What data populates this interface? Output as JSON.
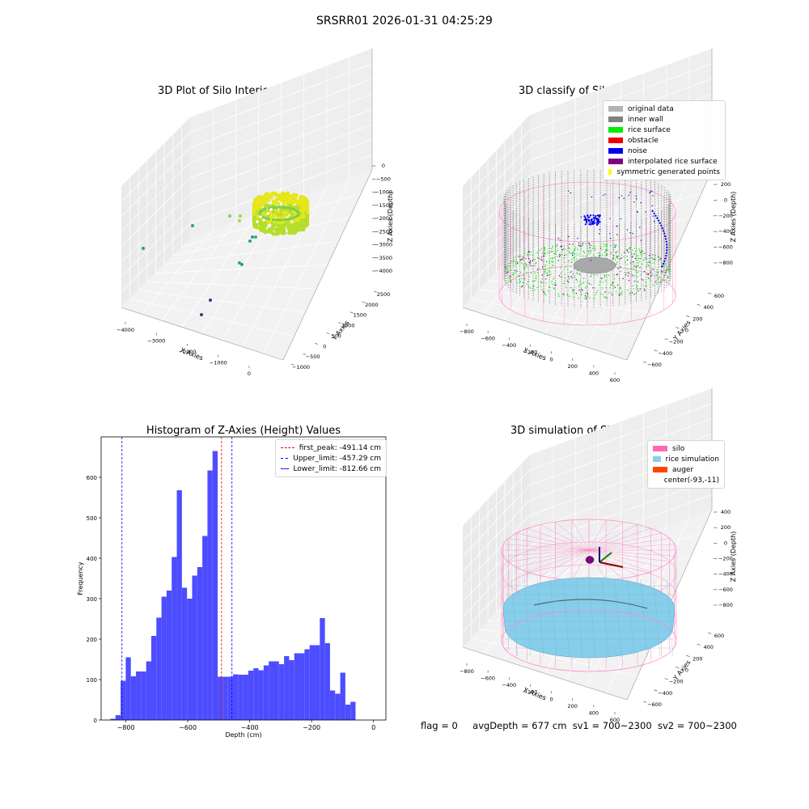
{
  "figure": {
    "suptitle": "SRSRR01 2026-01-31 04:25:29"
  },
  "panels": {
    "raw": {
      "title": "3D Plot of Silo Interior(row data)",
      "xlabel": "X Axies",
      "ylabel": "Y Axies",
      "zlabel": "Z Axies (Depth)",
      "xticks": [
        "−4000",
        "−3000",
        "−2000",
        "−1000",
        "0"
      ],
      "yticks": [
        "−1000",
        "−500",
        "0",
        "500",
        "1000",
        "1500",
        "2000",
        "2500"
      ],
      "zticks": [
        "0",
        "−500",
        "−1000",
        "−1500",
        "−2000",
        "−2500",
        "−3000",
        "−3500",
        "−4000"
      ]
    },
    "classify": {
      "title": "3D classify of Silo Interior",
      "xlabel": "X Axies",
      "ylabel": "Y Axies",
      "zlabel": "Z Axies (Depth)",
      "xticks": [
        "−800",
        "−600",
        "−400",
        "−200",
        "0",
        "200",
        "400",
        "600"
      ],
      "yticks": [
        "−600",
        "−400",
        "−200",
        "0",
        "200",
        "400",
        "600"
      ],
      "zticks": [
        "200",
        "0",
        "−200",
        "−400",
        "−600",
        "−800"
      ],
      "legend": [
        {
          "label": "original data",
          "color": "#b3b3b3"
        },
        {
          "label": "inner wall",
          "color": "#808080"
        },
        {
          "label": "rice surface",
          "color": "#00ee00"
        },
        {
          "label": "obstacle",
          "color": "#ee0000"
        },
        {
          "label": "noise",
          "color": "#0000ee"
        },
        {
          "label": "interpolated rice surface",
          "color": "#800080"
        },
        {
          "label": "symmetric generated points",
          "color": "#ffff00"
        }
      ]
    },
    "simulation": {
      "title": "3D simulation of Silo Interior",
      "xlabel": "X Axies",
      "ylabel": "Y Axies",
      "zlabel": "Z Axies (Depth)",
      "xticks": [
        "−800",
        "−600",
        "−400",
        "−200",
        "0",
        "200",
        "400",
        "600"
      ],
      "yticks": [
        "−600",
        "−400",
        "−200",
        "0",
        "200",
        "400",
        "600"
      ],
      "zticks": [
        "400",
        "200",
        "0",
        "−200",
        "−400",
        "−600",
        "−800"
      ],
      "legend": [
        {
          "label": "silo",
          "color": "#ff69b4"
        },
        {
          "label": "rice simulation",
          "color": "#87ceeb"
        },
        {
          "label": "auger",
          "color": "#ff4500"
        },
        {
          "label": "center(-93,-11)",
          "color": "#ffffff"
        }
      ]
    }
  },
  "chart_data": {
    "type": "bar",
    "title": "Histogram of Z-Axies (Height) Values",
    "xlabel": "Depth (cm)",
    "ylabel": "Frequency",
    "xlim": [
      -880,
      40
    ],
    "ylim": [
      0,
      700
    ],
    "xticks": [
      -800,
      -600,
      -400,
      -200,
      0
    ],
    "yticks": [
      0,
      100,
      200,
      300,
      400,
      500,
      600
    ],
    "bin_width": 16.5,
    "bin_start": -850,
    "values": [
      3,
      12,
      97,
      155,
      108,
      120,
      120,
      145,
      208,
      253,
      305,
      320,
      403,
      568,
      327,
      300,
      357,
      378,
      455,
      617,
      665,
      107,
      107,
      107,
      113,
      112,
      112,
      122,
      128,
      123,
      135,
      145,
      145,
      138,
      158,
      148,
      165,
      165,
      175,
      185,
      185,
      252,
      190,
      73,
      65,
      117,
      38,
      45
    ],
    "bar_color": "#4d4dff",
    "lines": [
      {
        "label": "first_peak: -491.14 cm",
        "value": -491.14,
        "color": "#ff0000"
      },
      {
        "label": "Upper_limit: -457.29 cm",
        "value": -457.29,
        "color": "#0000ff"
      },
      {
        "label": "Lower_limit: -812.66 cm",
        "value": -812.66,
        "color": "#0000ff"
      }
    ],
    "grid": false,
    "legend_position": "top-right"
  },
  "footer": {
    "flag": "flag = 0",
    "avg": "avgDepth = 677 cm",
    "sv1": "sv1 = 700~2300",
    "sv2": "sv2 = 700~2300"
  }
}
